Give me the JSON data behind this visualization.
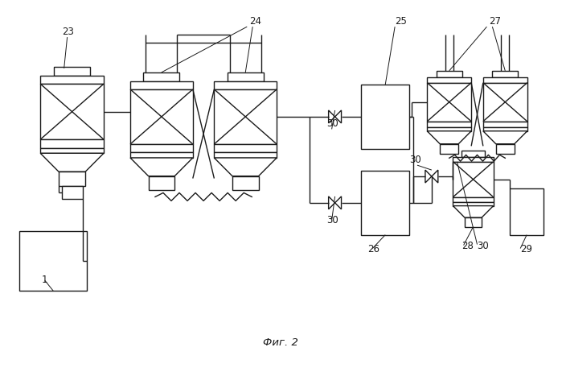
{
  "bg_color": "#ffffff",
  "line_color": "#1a1a1a",
  "fig_caption": "Фиг. 2",
  "lw": 1.0
}
